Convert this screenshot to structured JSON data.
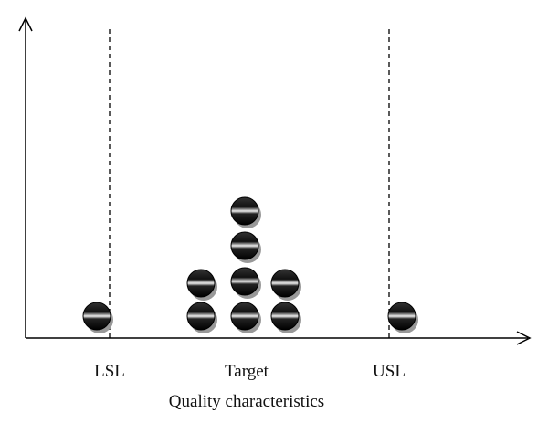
{
  "labels": {
    "lsl": "LSL",
    "target": "Target",
    "usl": "USL"
  },
  "axis_title": "Quality characteristics"
}
